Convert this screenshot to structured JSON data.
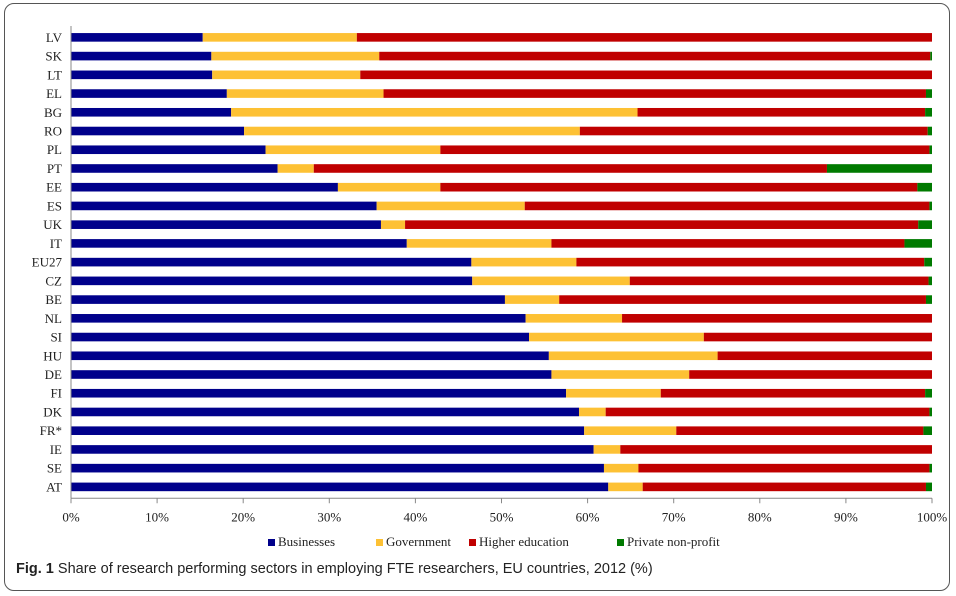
{
  "caption": {
    "label": "Fig. 1",
    "text": "Share of research performing sectors in employing FTE researchers, EU countries, 2012 (%)"
  },
  "chart_data": {
    "type": "bar",
    "orientation": "horizontal",
    "stacked": "percent",
    "categories": [
      "LV",
      "SK",
      "LT",
      "EL",
      "BG",
      "RO",
      "PL",
      "PT",
      "EE",
      "ES",
      "UK",
      "IT",
      "EU27",
      "CZ",
      "BE",
      "NL",
      "SI",
      "HU",
      "DE",
      "FI",
      "DK",
      "FR*",
      "IE",
      "SE",
      "AT"
    ],
    "series": [
      {
        "name": "Businesses",
        "color": "#00008b",
        "values": [
          15.3,
          16.3,
          16.4,
          18.1,
          18.6,
          20.1,
          22.6,
          24.0,
          31.0,
          35.5,
          36.0,
          39.0,
          46.5,
          46.6,
          50.4,
          52.8,
          53.2,
          55.5,
          55.8,
          57.5,
          59.0,
          59.6,
          60.7,
          61.9,
          62.4
        ]
      },
      {
        "name": "Government",
        "color": "#fdc134",
        "values": [
          17.9,
          19.5,
          17.2,
          18.2,
          47.2,
          39.0,
          20.3,
          4.2,
          11.9,
          17.2,
          2.8,
          16.8,
          12.2,
          18.3,
          6.3,
          11.2,
          20.3,
          19.6,
          16.0,
          11.0,
          3.1,
          10.7,
          3.1,
          4.0,
          4.0
        ]
      },
      {
        "name": "Higher education",
        "color": "#c00000",
        "values": [
          66.8,
          64.0,
          66.4,
          63.0,
          33.4,
          40.4,
          56.8,
          59.6,
          55.4,
          47.0,
          59.6,
          41.0,
          40.4,
          34.7,
          42.6,
          36.0,
          26.5,
          24.9,
          28.2,
          30.7,
          37.6,
          28.7,
          36.2,
          33.8,
          32.9
        ]
      },
      {
        "name": "Private non-profit",
        "color": "#007a00",
        "values": [
          0.0,
          0.2,
          0.0,
          0.7,
          0.8,
          0.5,
          0.3,
          12.2,
          1.7,
          0.3,
          1.6,
          3.2,
          0.9,
          0.4,
          0.7,
          0.0,
          0.0,
          0.0,
          0.0,
          0.8,
          0.3,
          1.0,
          0.0,
          0.3,
          0.7
        ]
      }
    ],
    "x_ticks": [
      "0%",
      "10%",
      "20%",
      "30%",
      "40%",
      "50%",
      "60%",
      "70%",
      "80%",
      "90%",
      "100%"
    ],
    "xlim": [
      0,
      100
    ],
    "grid": false,
    "legend_position": "bottom"
  }
}
